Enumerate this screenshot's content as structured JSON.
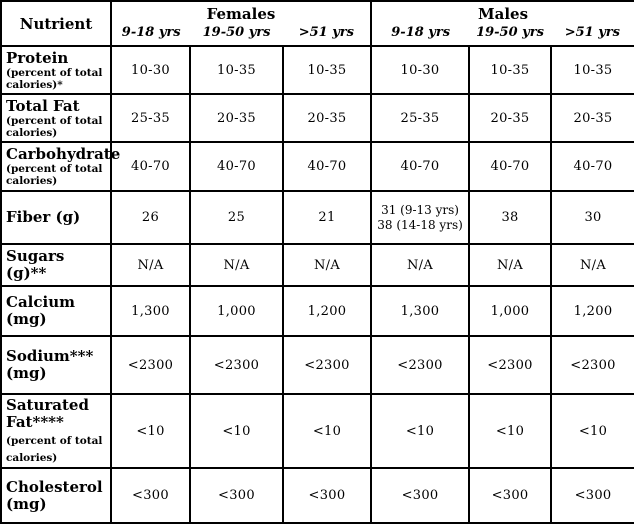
{
  "table": {
    "corner_header": "Nutrient",
    "groups": [
      {
        "label": "Females",
        "ages": [
          "9-18 yrs",
          "19-50 yrs",
          ">51 yrs"
        ]
      },
      {
        "label": "Males",
        "ages": [
          "9-18 yrs",
          "19-50 yrs",
          ">51 yrs"
        ]
      }
    ],
    "rows": [
      {
        "label": "Protein",
        "note": "(percent of total calories)*",
        "note_style": "small-block",
        "values": [
          "10-30",
          "10-35",
          "10-35",
          "10-30",
          "10-35",
          "10-35"
        ]
      },
      {
        "label": "Total Fat",
        "note": "(percent of total calories)",
        "note_style": "small-block",
        "values": [
          "25-35",
          "20-35",
          "20-35",
          "25-35",
          "20-35",
          "20-35"
        ]
      },
      {
        "label": "Carbohydrate",
        "note": "(percent of total calories)",
        "note_style": "small-block",
        "values": [
          "40-70",
          "40-70",
          "40-70",
          "40-70",
          "40-70",
          "40-70"
        ]
      },
      {
        "label": "Fiber (g)",
        "note": "",
        "note_style": "none",
        "values": [
          "26",
          "25",
          "21",
          "31 (9-13 yrs)\n38 (14-18 yrs)",
          "38",
          "30"
        ]
      },
      {
        "label": "Sugars (g)**",
        "note": "",
        "note_style": "none",
        "values": [
          "N/A",
          "N/A",
          "N/A",
          "N/A",
          "N/A",
          "N/A"
        ]
      },
      {
        "label": "Calcium (mg)",
        "note": "",
        "note_style": "none",
        "values": [
          "1,300",
          "1,000",
          "1,200",
          "1,300",
          "1,000",
          "1,200"
        ]
      },
      {
        "label": "Sodium***",
        "note": "(mg)",
        "note_style": "large-block",
        "values": [
          "<2300",
          "<2300",
          "<2300",
          "<2300",
          "<2300",
          "<2300"
        ]
      },
      {
        "label": "Saturated Fat****",
        "note": "(percent of total calories)",
        "note_style": "small-inline",
        "values": [
          "<10",
          "<10",
          "<10",
          "<10",
          "<10",
          "<10"
        ]
      },
      {
        "label": "Cholesterol",
        "note": "(mg)",
        "note_style": "large-block",
        "values": [
          "<300",
          "<300",
          "<300",
          "<300",
          "<300",
          "<300"
        ]
      }
    ]
  }
}
